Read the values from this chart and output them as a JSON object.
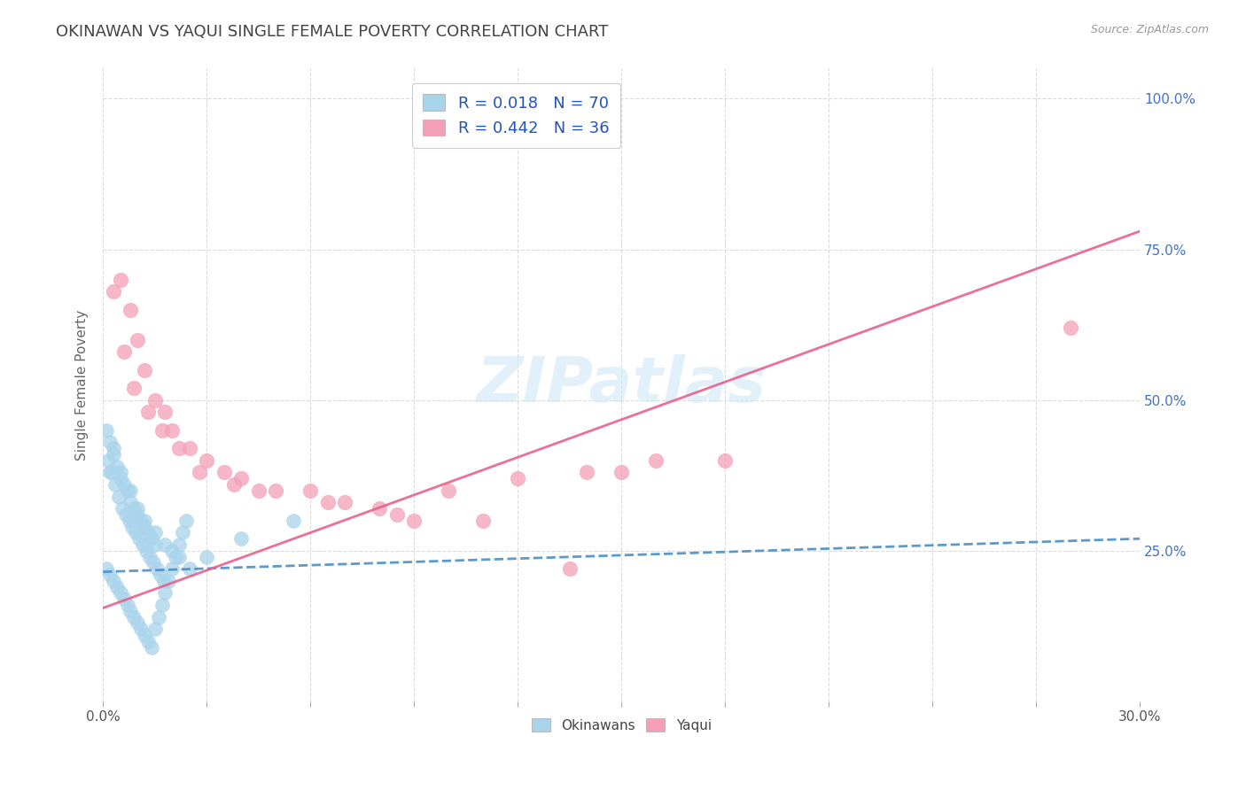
{
  "title": "OKINAWAN VS YAQUI SINGLE FEMALE POVERTY CORRELATION CHART",
  "source": "Source: ZipAtlas.com",
  "ylabel": "Single Female Poverty",
  "legend_okinawan": "R = 0.018   N = 70",
  "legend_yaqui": "R = 0.442   N = 36",
  "legend_bottom": [
    "Okinawans",
    "Yaqui"
  ],
  "watermark": "ZIPatlas",
  "okinawan_color": "#a8d4ec",
  "yaqui_color": "#f4a0b8",
  "okinawan_line_color": "#4a90c4",
  "yaqui_line_color": "#e8608a",
  "background_color": "#ffffff",
  "grid_color": "#cccccc",
  "title_color": "#555555",
  "okinawan_scatter_x": [
    0.2,
    0.3,
    0.5,
    0.8,
    1.0,
    1.2,
    1.5,
    1.8,
    2.0,
    2.2,
    0.1,
    0.2,
    0.3,
    0.4,
    0.5,
    0.6,
    0.7,
    0.8,
    0.9,
    1.0,
    1.1,
    1.2,
    1.3,
    1.4,
    1.5,
    0.15,
    0.25,
    0.35,
    0.45,
    0.55,
    0.65,
    0.75,
    0.85,
    0.95,
    1.05,
    1.15,
    1.25,
    1.35,
    1.45,
    1.55,
    1.65,
    1.75,
    2.5,
    3.0,
    4.0,
    5.5,
    0.1,
    0.2,
    0.3,
    0.4,
    0.5,
    0.6,
    0.7,
    0.8,
    0.9,
    1.0,
    1.1,
    1.2,
    1.3,
    1.4,
    1.5,
    1.6,
    1.7,
    1.8,
    1.9,
    2.0,
    2.1,
    2.2,
    2.3,
    2.4
  ],
  "okinawan_scatter_y": [
    0.38,
    0.42,
    0.38,
    0.35,
    0.32,
    0.3,
    0.28,
    0.26,
    0.25,
    0.24,
    0.45,
    0.43,
    0.41,
    0.39,
    0.37,
    0.36,
    0.35,
    0.33,
    0.32,
    0.31,
    0.3,
    0.29,
    0.28,
    0.27,
    0.26,
    0.4,
    0.38,
    0.36,
    0.34,
    0.32,
    0.31,
    0.3,
    0.29,
    0.28,
    0.27,
    0.26,
    0.25,
    0.24,
    0.23,
    0.22,
    0.21,
    0.2,
    0.22,
    0.24,
    0.27,
    0.3,
    0.22,
    0.21,
    0.2,
    0.19,
    0.18,
    0.17,
    0.16,
    0.15,
    0.14,
    0.13,
    0.12,
    0.11,
    0.1,
    0.09,
    0.12,
    0.14,
    0.16,
    0.18,
    0.2,
    0.22,
    0.24,
    0.26,
    0.28,
    0.3
  ],
  "yaqui_scatter_x": [
    0.5,
    0.8,
    1.0,
    1.2,
    1.5,
    1.8,
    2.0,
    2.5,
    3.0,
    3.5,
    4.0,
    5.0,
    6.0,
    7.0,
    8.0,
    9.0,
    10.0,
    12.0,
    14.0,
    15.0,
    16.0,
    18.0,
    0.3,
    0.6,
    0.9,
    1.3,
    1.7,
    2.2,
    2.8,
    3.8,
    4.5,
    6.5,
    8.5,
    11.0,
    13.5,
    28.0
  ],
  "yaqui_scatter_y": [
    0.7,
    0.65,
    0.6,
    0.55,
    0.5,
    0.48,
    0.45,
    0.42,
    0.4,
    0.38,
    0.37,
    0.35,
    0.35,
    0.33,
    0.32,
    0.3,
    0.35,
    0.37,
    0.38,
    0.38,
    0.4,
    0.4,
    0.68,
    0.58,
    0.52,
    0.48,
    0.45,
    0.42,
    0.38,
    0.36,
    0.35,
    0.33,
    0.31,
    0.3,
    0.22,
    0.62
  ],
  "okinawan_trendline_x": [
    0.0,
    30.0
  ],
  "okinawan_trendline_y": [
    0.215,
    0.27
  ],
  "yaqui_trendline_x": [
    0.0,
    30.0
  ],
  "yaqui_trendline_y": [
    0.155,
    0.78
  ],
  "xlim": [
    0.0,
    30.0
  ],
  "ylim": [
    0.0,
    1.05
  ],
  "ytick_vals": [
    0.25,
    0.5,
    0.75,
    1.0
  ],
  "ytick_labels": [
    "25.0%",
    "50.0%",
    "75.0%",
    "100.0%"
  ]
}
